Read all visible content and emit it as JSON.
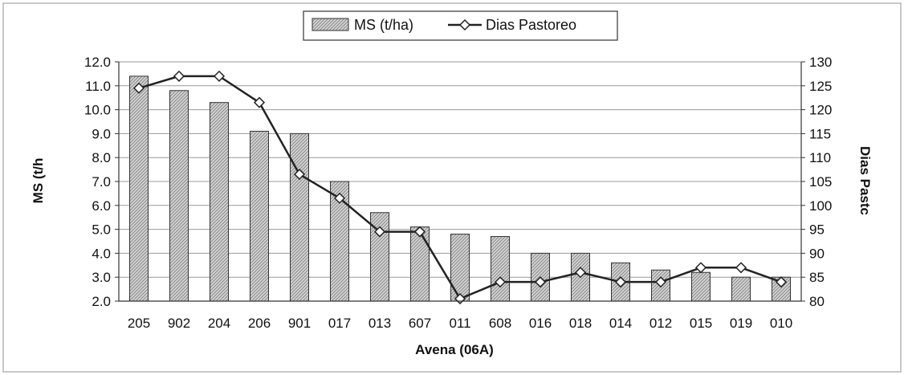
{
  "chart_data": {
    "type": "bar",
    "categories": [
      "205",
      "902",
      "204",
      "206",
      "901",
      "017",
      "013",
      "607",
      "011",
      "608",
      "016",
      "018",
      "014",
      "012",
      "015",
      "019",
      "010"
    ],
    "series": [
      {
        "name": "MS (t/ha)",
        "type": "bar",
        "axis": "left",
        "values": [
          11.4,
          10.8,
          10.3,
          9.1,
          9.0,
          7.0,
          5.7,
          5.1,
          4.8,
          4.7,
          4.0,
          4.0,
          3.6,
          3.3,
          3.2,
          3.0,
          3.0
        ]
      },
      {
        "name": "Dias Pastoreo",
        "type": "line",
        "axis": "right",
        "values": [
          124.5,
          127,
          127,
          121.5,
          106.5,
          101.5,
          94.5,
          94.5,
          80.5,
          84,
          84,
          86,
          84,
          84,
          87,
          87,
          84
        ]
      }
    ],
    "xlabel": "Avena (06A)",
    "ylabel": "MS (t/h",
    "y2label": "Dias Pastc",
    "ylim": [
      2.0,
      12.0
    ],
    "y2lim": [
      80,
      130
    ],
    "yticks": [
      "2.0",
      "3.0",
      "4.0",
      "5.0",
      "6.0",
      "7.0",
      "8.0",
      "9.0",
      "10.0",
      "11.0",
      "12.0"
    ],
    "y2ticks": [
      "80",
      "85",
      "90",
      "95",
      "100",
      "105",
      "110",
      "115",
      "120",
      "125",
      "130"
    ],
    "grid": true,
    "legend_position": "top-center",
    "colors": {
      "bar_fill": "#c9c9c9",
      "bar_stroke": "#333333",
      "line": "#222222",
      "marker_fill": "#ffffff",
      "grid": "#9a9a9a"
    }
  }
}
